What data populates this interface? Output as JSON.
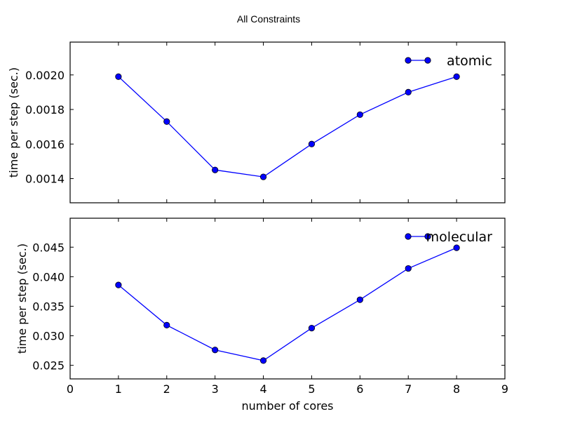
{
  "figure": {
    "suptitle": "All Constraints",
    "xlabel": "number of cores"
  },
  "chart_data": [
    {
      "type": "line",
      "title": "",
      "xlabel": "",
      "ylabel": "time per step (sec.)",
      "xlim": [
        0,
        9
      ],
      "ylim": [
        0.00126,
        0.00219
      ],
      "yticks": [
        "0.0014",
        "0.0016",
        "0.0018",
        "0.0020"
      ],
      "ytick_values": [
        0.0014,
        0.0016,
        0.0018,
        0.002
      ],
      "xticks_labeled": false,
      "legend": "top-right",
      "grid": false,
      "series": [
        {
          "name": "atomic",
          "color": "#0000ff",
          "x": [
            1,
            2,
            3,
            4,
            5,
            6,
            7,
            8
          ],
          "y": [
            0.00199,
            0.00173,
            0.00145,
            0.00141,
            0.0016,
            0.00177,
            0.0019,
            0.00199
          ]
        }
      ]
    },
    {
      "type": "line",
      "title": "",
      "xlabel": "number of cores",
      "ylabel": "time per step (sec.)",
      "xlim": [
        0,
        9
      ],
      "ylim": [
        0.0227,
        0.0499
      ],
      "xticks": [
        "0",
        "1",
        "2",
        "3",
        "4",
        "5",
        "6",
        "7",
        "8",
        "9"
      ],
      "xtick_values": [
        0,
        1,
        2,
        3,
        4,
        5,
        6,
        7,
        8,
        9
      ],
      "yticks": [
        "0.025",
        "0.030",
        "0.035",
        "0.040",
        "0.045"
      ],
      "ytick_values": [
        0.025,
        0.03,
        0.035,
        0.04,
        0.045
      ],
      "xticks_labeled": true,
      "legend": "top-right",
      "grid": false,
      "series": [
        {
          "name": "molecular",
          "color": "#0000ff",
          "x": [
            1,
            2,
            3,
            4,
            5,
            6,
            7,
            8
          ],
          "y": [
            0.0386,
            0.0318,
            0.0276,
            0.0258,
            0.0313,
            0.0361,
            0.0414,
            0.0449
          ]
        }
      ]
    }
  ]
}
